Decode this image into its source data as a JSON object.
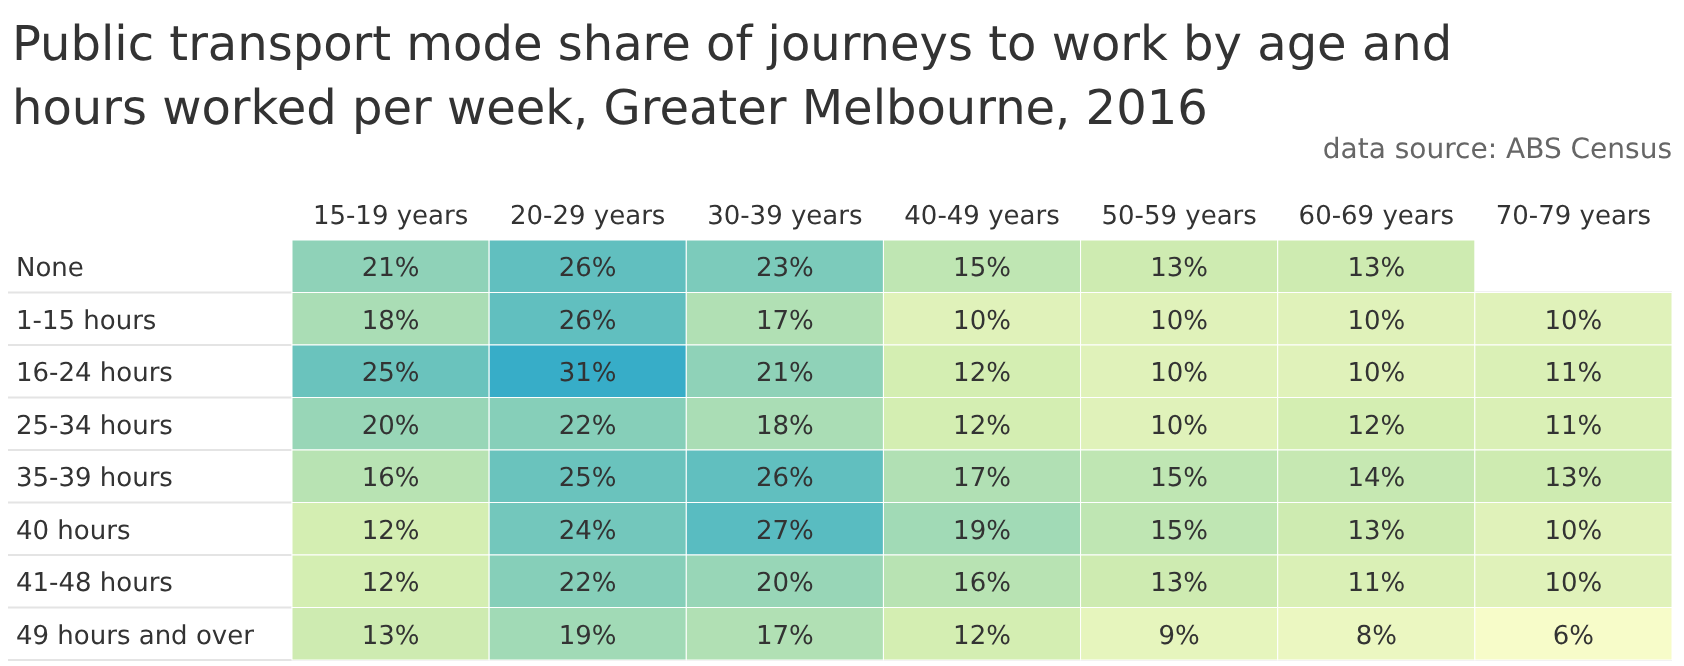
{
  "chart_data": {
    "type": "heatmap",
    "title": "Public transport mode share of journeys to work by age and hours worked per week, Greater Melbourne, 2016",
    "annotations": [
      "data source: ABS Census"
    ],
    "categories": [
      "15-19 years",
      "20-29 years",
      "30-39 years",
      "40-49 years",
      "50-59 years",
      "60-69 years",
      "70-79 years"
    ],
    "y_categories": [
      "None",
      "1-15 hours",
      "16-24 hours",
      "25-34 hours",
      "35-39 hours",
      "40 hours",
      "41-48 hours",
      "49 hours and over"
    ],
    "cells": [
      [
        21,
        26,
        23,
        15,
        13,
        13,
        null
      ],
      [
        18,
        26,
        17,
        10,
        10,
        10,
        10
      ],
      [
        25,
        31,
        21,
        12,
        10,
        10,
        11
      ],
      [
        20,
        22,
        18,
        12,
        10,
        12,
        11
      ],
      [
        16,
        25,
        26,
        17,
        15,
        14,
        13
      ],
      [
        12,
        24,
        27,
        19,
        15,
        13,
        10
      ],
      [
        12,
        22,
        20,
        16,
        13,
        11,
        10
      ],
      [
        13,
        19,
        17,
        12,
        9,
        8,
        6
      ]
    ],
    "cell_labels": [
      [
        "21%",
        "26%",
        "23%",
        "15%",
        "13%",
        "13%",
        null
      ],
      [
        "18%",
        "26%",
        "17%",
        "10%",
        "10%",
        "10%",
        "10%"
      ],
      [
        "25%",
        "31%",
        "21%",
        "12%",
        "10%",
        "10%",
        "11%"
      ],
      [
        "20%",
        "22%",
        "18%",
        "12%",
        "10%",
        "12%",
        "11%"
      ],
      [
        "16%",
        "25%",
        "26%",
        "17%",
        "15%",
        "14%",
        "13%"
      ],
      [
        "12%",
        "24%",
        "27%",
        "19%",
        "15%",
        "13%",
        "10%"
      ],
      [
        "12%",
        "22%",
        "20%",
        "16%",
        "13%",
        "11%",
        "10%"
      ],
      [
        "13%",
        "19%",
        "17%",
        "12%",
        "9%",
        "8%",
        "6%"
      ]
    ]
  }
}
